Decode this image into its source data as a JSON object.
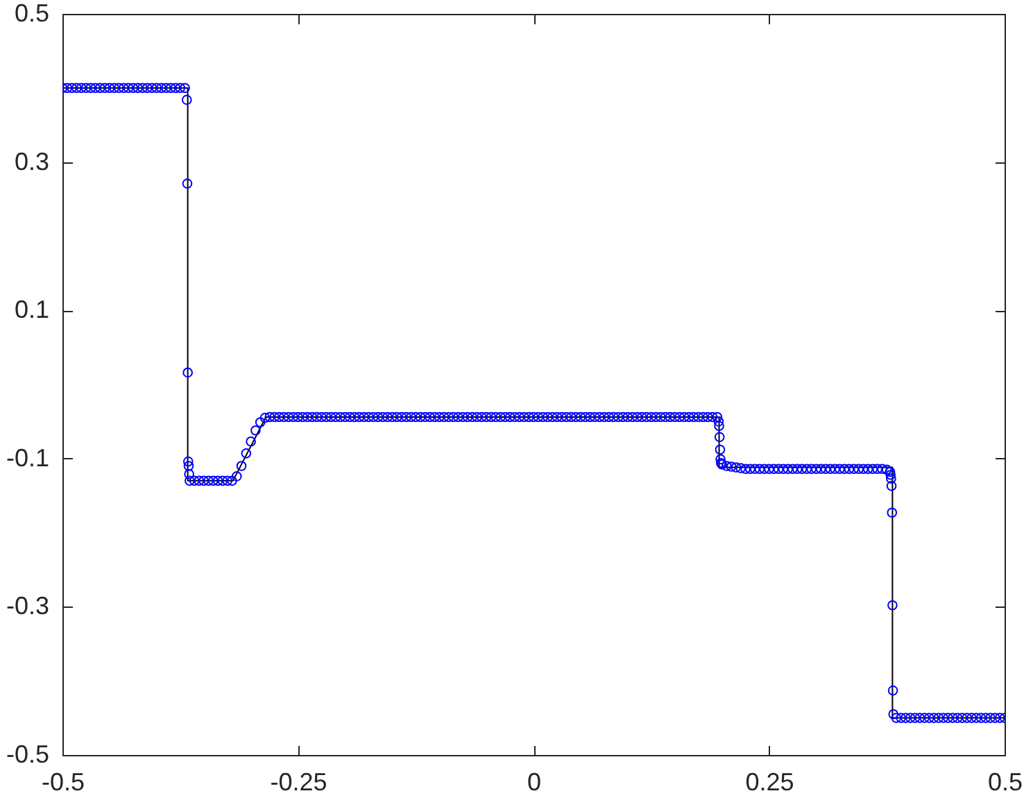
{
  "chart_data": {
    "type": "scatter",
    "xlim": [
      -0.5,
      0.5
    ],
    "ylim": [
      -0.5,
      0.5
    ],
    "xticks": [
      -0.5,
      -0.25,
      0,
      0.25,
      0.5
    ],
    "yticks": [
      -0.5,
      -0.3,
      -0.1,
      0.1,
      0.3,
      0.5
    ],
    "series": [
      {
        "type": "line",
        "color": "#000000",
        "line_style": "solid",
        "x": [
          -0.5,
          -0.367,
          -0.367,
          -0.319,
          -0.284,
          0.197,
          0.197,
          0.381,
          0.381,
          0.5
        ],
        "values": [
          0.4,
          0.4,
          -0.13,
          -0.13,
          -0.044,
          -0.044,
          -0.112,
          -0.112,
          -0.45,
          -0.45
        ]
      },
      {
        "color": "#0000ff",
        "marker": "circle",
        "x": [
          -0.5,
          -0.495,
          -0.49,
          -0.485,
          -0.48,
          -0.475,
          -0.47,
          -0.465,
          -0.46,
          -0.455,
          -0.45,
          -0.445,
          -0.44,
          -0.435,
          -0.43,
          -0.425,
          -0.42,
          -0.415,
          -0.41,
          -0.405,
          -0.4,
          -0.395,
          -0.39,
          -0.385,
          -0.38,
          -0.375,
          -0.37,
          -0.368,
          -0.3675,
          -0.367,
          -0.3665,
          -0.366,
          -0.3655,
          -0.365,
          -0.36,
          -0.355,
          -0.35,
          -0.345,
          -0.34,
          -0.335,
          -0.33,
          -0.325,
          -0.32,
          -0.315,
          -0.31,
          -0.305,
          -0.3,
          -0.295,
          -0.29,
          -0.285,
          -0.28,
          -0.275,
          -0.27,
          -0.265,
          -0.26,
          -0.255,
          -0.25,
          -0.245,
          -0.24,
          -0.235,
          -0.23,
          -0.225,
          -0.22,
          -0.215,
          -0.21,
          -0.205,
          -0.2,
          -0.195,
          -0.19,
          -0.185,
          -0.18,
          -0.175,
          -0.17,
          -0.165,
          -0.16,
          -0.155,
          -0.15,
          -0.145,
          -0.14,
          -0.135,
          -0.13,
          -0.125,
          -0.12,
          -0.115,
          -0.11,
          -0.105,
          -0.1,
          -0.095,
          -0.09,
          -0.085,
          -0.08,
          -0.075,
          -0.07,
          -0.065,
          -0.06,
          -0.055,
          -0.05,
          -0.045,
          -0.04,
          -0.035,
          -0.03,
          -0.025,
          -0.02,
          -0.015,
          -0.01,
          -0.005,
          0,
          0.005,
          0.01,
          0.015,
          0.02,
          0.025,
          0.03,
          0.035,
          0.04,
          0.045,
          0.05,
          0.055,
          0.06,
          0.065,
          0.07,
          0.075,
          0.08,
          0.085,
          0.09,
          0.095,
          0.1,
          0.105,
          0.11,
          0.115,
          0.12,
          0.125,
          0.13,
          0.135,
          0.14,
          0.145,
          0.15,
          0.155,
          0.16,
          0.165,
          0.17,
          0.175,
          0.18,
          0.185,
          0.19,
          0.195,
          0.1965,
          0.197,
          0.1975,
          0.198,
          0.1985,
          0.199,
          0.2,
          0.205,
          0.21,
          0.215,
          0.22,
          0.225,
          0.23,
          0.235,
          0.24,
          0.245,
          0.25,
          0.255,
          0.26,
          0.265,
          0.27,
          0.275,
          0.28,
          0.285,
          0.29,
          0.295,
          0.3,
          0.305,
          0.31,
          0.315,
          0.32,
          0.325,
          0.33,
          0.335,
          0.34,
          0.345,
          0.35,
          0.355,
          0.36,
          0.365,
          0.37,
          0.375,
          0.3785,
          0.379,
          0.3795,
          0.38,
          0.3805,
          0.381,
          0.3815,
          0.382,
          0.385,
          0.39,
          0.395,
          0.4,
          0.405,
          0.41,
          0.415,
          0.42,
          0.425,
          0.43,
          0.435,
          0.44,
          0.445,
          0.45,
          0.455,
          0.46,
          0.465,
          0.47,
          0.475,
          0.48,
          0.485,
          0.49,
          0.495,
          0.5
        ],
        "values": [
          0.4,
          0.4,
          0.4,
          0.4,
          0.4,
          0.4,
          0.4,
          0.4,
          0.4,
          0.4,
          0.4,
          0.4,
          0.4,
          0.4,
          0.4,
          0.4,
          0.4,
          0.4,
          0.4,
          0.4,
          0.4,
          0.4,
          0.4,
          0.4,
          0.4,
          0.4,
          0.4,
          0.384,
          0.271,
          0.016,
          -0.104,
          -0.11,
          -0.121,
          -0.13,
          -0.13,
          -0.13,
          -0.13,
          -0.13,
          -0.13,
          -0.13,
          -0.13,
          -0.13,
          -0.13,
          -0.124,
          -0.11,
          -0.093,
          -0.077,
          -0.062,
          -0.051,
          -0.045,
          -0.044,
          -0.044,
          -0.044,
          -0.044,
          -0.044,
          -0.044,
          -0.044,
          -0.044,
          -0.044,
          -0.044,
          -0.044,
          -0.044,
          -0.044,
          -0.044,
          -0.044,
          -0.044,
          -0.044,
          -0.044,
          -0.044,
          -0.044,
          -0.044,
          -0.044,
          -0.044,
          -0.044,
          -0.044,
          -0.044,
          -0.044,
          -0.044,
          -0.044,
          -0.044,
          -0.044,
          -0.044,
          -0.044,
          -0.044,
          -0.044,
          -0.044,
          -0.044,
          -0.044,
          -0.044,
          -0.044,
          -0.044,
          -0.044,
          -0.044,
          -0.044,
          -0.044,
          -0.044,
          -0.044,
          -0.044,
          -0.044,
          -0.044,
          -0.044,
          -0.044,
          -0.044,
          -0.044,
          -0.044,
          -0.044,
          -0.044,
          -0.044,
          -0.044,
          -0.044,
          -0.044,
          -0.044,
          -0.044,
          -0.044,
          -0.044,
          -0.044,
          -0.044,
          -0.044,
          -0.044,
          -0.044,
          -0.044,
          -0.044,
          -0.044,
          -0.044,
          -0.044,
          -0.044,
          -0.044,
          -0.044,
          -0.044,
          -0.044,
          -0.044,
          -0.044,
          -0.044,
          -0.044,
          -0.044,
          -0.044,
          -0.044,
          -0.044,
          -0.044,
          -0.044,
          -0.044,
          -0.044,
          -0.044,
          -0.044,
          -0.044,
          -0.044,
          -0.05,
          -0.056,
          -0.071,
          -0.088,
          -0.101,
          -0.106,
          -0.108,
          -0.11,
          -0.111,
          -0.112,
          -0.113,
          -0.114,
          -0.114,
          -0.114,
          -0.114,
          -0.114,
          -0.114,
          -0.114,
          -0.114,
          -0.114,
          -0.114,
          -0.114,
          -0.114,
          -0.114,
          -0.114,
          -0.114,
          -0.114,
          -0.114,
          -0.114,
          -0.114,
          -0.114,
          -0.114,
          -0.114,
          -0.114,
          -0.114,
          -0.114,
          -0.114,
          -0.114,
          -0.114,
          -0.114,
          -0.114,
          -0.115,
          -0.118,
          -0.122,
          -0.127,
          -0.137,
          -0.173,
          -0.298,
          -0.413,
          -0.445,
          -0.45,
          -0.45,
          -0.45,
          -0.45,
          -0.45,
          -0.45,
          -0.45,
          -0.45,
          -0.45,
          -0.45,
          -0.45,
          -0.45,
          -0.45,
          -0.45,
          -0.45,
          -0.45,
          -0.45,
          -0.45,
          -0.45,
          -0.45,
          -0.45,
          -0.45,
          -0.45,
          -0.45
        ]
      }
    ]
  }
}
